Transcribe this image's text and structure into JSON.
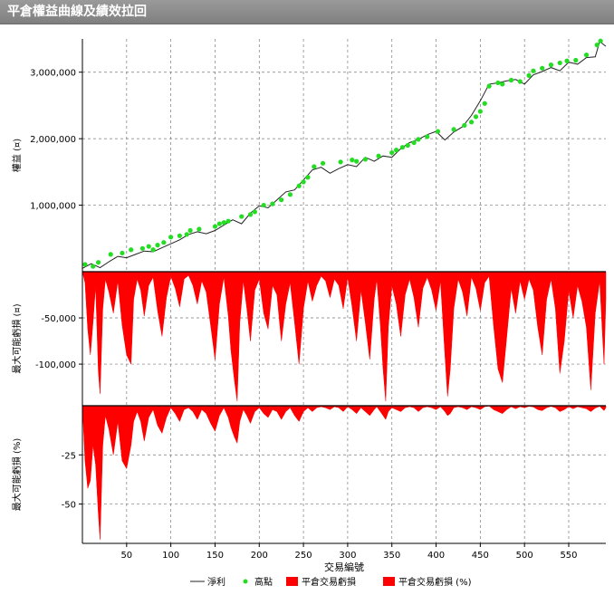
{
  "window_title": "平倉權益曲線及績效拉回",
  "colors": {
    "equity_line": "#222222",
    "high_points": "#22dd22",
    "drawdown_fill": "#ff0000",
    "grid": "#7a7a7a",
    "background": "#ffffff"
  },
  "chart_data": [
    {
      "type": "line",
      "panel": "equity",
      "ylabel": "權益 (¤)",
      "xlim": [
        0,
        592
      ],
      "ylim": [
        0,
        3500000
      ],
      "yticks": [
        1000000,
        2000000,
        3000000
      ],
      "ytick_labels": [
        "1,000,000",
        "2,000,000",
        "3,000,000"
      ],
      "grid": true,
      "series": [
        {
          "name": "淨利",
          "x": [
            0,
            10,
            20,
            30,
            40,
            50,
            60,
            70,
            80,
            90,
            100,
            110,
            120,
            130,
            140,
            150,
            160,
            170,
            180,
            190,
            200,
            210,
            220,
            230,
            240,
            250,
            260,
            270,
            280,
            290,
            300,
            310,
            320,
            330,
            340,
            350,
            360,
            370,
            380,
            390,
            400,
            410,
            420,
            430,
            440,
            450,
            460,
            470,
            480,
            490,
            500,
            510,
            520,
            530,
            540,
            550,
            560,
            570,
            580,
            585,
            592
          ],
          "y": [
            50000,
            120000,
            60000,
            150000,
            230000,
            210000,
            260000,
            310000,
            300000,
            360000,
            420000,
            480000,
            560000,
            600000,
            570000,
            620000,
            700000,
            780000,
            720000,
            880000,
            990000,
            960000,
            1080000,
            1200000,
            1230000,
            1380000,
            1530000,
            1570000,
            1480000,
            1550000,
            1610000,
            1580000,
            1720000,
            1660000,
            1740000,
            1720000,
            1850000,
            1940000,
            1990000,
            2060000,
            2110000,
            1980000,
            2100000,
            2180000,
            2350000,
            2570000,
            2820000,
            2840000,
            2870000,
            2890000,
            2820000,
            2960000,
            3010000,
            3070000,
            3020000,
            3150000,
            3120000,
            3220000,
            3230000,
            3460000,
            3390000
          ]
        },
        {
          "name": "高點",
          "x": [
            3,
            12,
            18,
            32,
            45,
            55,
            68,
            75,
            80,
            85,
            92,
            100,
            110,
            118,
            122,
            132,
            150,
            155,
            160,
            165,
            180,
            190,
            195,
            205,
            215,
            225,
            235,
            245,
            250,
            255,
            262,
            272,
            292,
            305,
            310,
            320,
            335,
            350,
            355,
            362,
            368,
            375,
            380,
            390,
            402,
            420,
            432,
            440,
            445,
            450,
            455,
            460,
            470,
            475,
            485,
            495,
            505,
            510,
            520,
            530,
            540,
            548,
            558,
            570,
            582,
            586
          ],
          "y": [
            110000,
            80000,
            140000,
            260000,
            280000,
            330000,
            350000,
            380000,
            330000,
            400000,
            440000,
            520000,
            540000,
            560000,
            620000,
            640000,
            680000,
            720000,
            740000,
            760000,
            830000,
            860000,
            900000,
            1000000,
            1020000,
            1080000,
            1160000,
            1290000,
            1350000,
            1420000,
            1580000,
            1630000,
            1650000,
            1680000,
            1660000,
            1690000,
            1740000,
            1790000,
            1830000,
            1870000,
            1900000,
            1940000,
            1990000,
            2030000,
            2110000,
            2140000,
            2200000,
            2250000,
            2330000,
            2410000,
            2530000,
            2790000,
            2840000,
            2820000,
            2880000,
            2860000,
            2950000,
            3020000,
            3060000,
            3110000,
            3140000,
            3170000,
            3180000,
            3260000,
            3410000,
            3470000
          ]
        }
      ]
    },
    {
      "type": "area",
      "panel": "drawdown_amount",
      "ylabel": "最大可能虧損 (¤)",
      "xlim": [
        0,
        592
      ],
      "ylim": [
        -145000,
        0
      ],
      "yticks": [
        -50000,
        -100000
      ],
      "ytick_labels": [
        "-50,000",
        "-100,000"
      ],
      "grid": true,
      "series": [
        {
          "name": "平倉交易虧損",
          "x": [
            0,
            3,
            6,
            9,
            12,
            15,
            18,
            20,
            23,
            26,
            30,
            35,
            40,
            45,
            50,
            55,
            58,
            62,
            66,
            70,
            75,
            80,
            85,
            90,
            95,
            100,
            105,
            110,
            115,
            120,
            125,
            130,
            135,
            140,
            145,
            150,
            155,
            160,
            165,
            168,
            172,
            175,
            178,
            182,
            186,
            190,
            195,
            200,
            205,
            210,
            215,
            220,
            225,
            230,
            235,
            240,
            245,
            250,
            255,
            260,
            265,
            270,
            275,
            280,
            285,
            290,
            295,
            300,
            305,
            310,
            315,
            320,
            325,
            330,
            333,
            337,
            340,
            343,
            346,
            350,
            355,
            360,
            365,
            370,
            375,
            380,
            385,
            390,
            395,
            400,
            405,
            410,
            413,
            416,
            420,
            425,
            430,
            435,
            440,
            445,
            450,
            455,
            460,
            465,
            470,
            475,
            480,
            485,
            490,
            495,
            500,
            505,
            510,
            515,
            520,
            525,
            530,
            535,
            540,
            545,
            550,
            555,
            560,
            565,
            570,
            575,
            580,
            585,
            590,
            592
          ],
          "y": [
            0,
            -12000,
            -62000,
            -90000,
            -55000,
            -15000,
            -108000,
            -132000,
            -40000,
            -8000,
            -22000,
            -45000,
            -10000,
            -58000,
            -90000,
            -100000,
            -30000,
            -8000,
            -20000,
            -48000,
            -15000,
            -6000,
            -42000,
            -70000,
            -28000,
            -5000,
            -18000,
            -38000,
            -8000,
            -4000,
            -15000,
            -35000,
            -10000,
            -22000,
            -58000,
            -95000,
            -35000,
            -6000,
            -48000,
            -85000,
            -118000,
            -140000,
            -55000,
            -10000,
            -40000,
            -75000,
            -20000,
            -8000,
            -45000,
            -62000,
            -15000,
            -25000,
            -75000,
            -35000,
            -12000,
            -55000,
            -100000,
            -40000,
            -10000,
            -32000,
            -15000,
            -5000,
            -10000,
            -28000,
            -8000,
            -15000,
            -40000,
            -6000,
            -38000,
            -75000,
            -20000,
            -55000,
            -95000,
            -30000,
            -8000,
            -58000,
            -105000,
            -140000,
            -60000,
            -15000,
            -35000,
            -70000,
            -25000,
            -8000,
            -28000,
            -60000,
            -18000,
            -6000,
            -20000,
            -42000,
            -10000,
            -90000,
            -135000,
            -105000,
            -40000,
            -8000,
            -22000,
            -48000,
            -6000,
            -18000,
            -42000,
            -12000,
            -5000,
            -58000,
            -105000,
            -120000,
            -70000,
            -18000,
            -45000,
            -10000,
            -30000,
            -8000,
            -20000,
            -60000,
            -90000,
            -30000,
            -8000,
            -40000,
            -110000,
            -75000,
            -20000,
            -50000,
            -15000,
            -32000,
            -60000,
            -128000,
            -45000,
            -10000,
            -100000,
            -30000
          ]
        }
      ]
    },
    {
      "type": "area",
      "panel": "drawdown_percent",
      "ylabel": "最大可能虧損 (%)",
      "xlabel": "交易編號",
      "xlim": [
        0,
        592
      ],
      "ylim": [
        -70,
        0
      ],
      "yticks": [
        -25,
        -50
      ],
      "ytick_labels": [
        "-25",
        "-50"
      ],
      "xticks": [
        50,
        100,
        150,
        200,
        250,
        300,
        350,
        400,
        450,
        500,
        550
      ],
      "xtick_labels": [
        "50",
        "100",
        "150",
        "200",
        "250",
        "300",
        "350",
        "400",
        "450",
        "500",
        "550"
      ],
      "grid": true,
      "series": [
        {
          "name": "平倉交易虧損 (%)",
          "x": [
            0,
            3,
            6,
            9,
            12,
            15,
            18,
            20,
            23,
            26,
            30,
            35,
            40,
            45,
            50,
            55,
            58,
            62,
            66,
            70,
            75,
            80,
            85,
            90,
            95,
            100,
            105,
            110,
            115,
            120,
            125,
            130,
            135,
            140,
            145,
            150,
            155,
            160,
            165,
            168,
            172,
            175,
            178,
            182,
            186,
            190,
            195,
            200,
            205,
            210,
            215,
            220,
            225,
            230,
            235,
            240,
            245,
            250,
            255,
            260,
            265,
            270,
            275,
            280,
            285,
            290,
            295,
            300,
            305,
            310,
            315,
            320,
            325,
            330,
            333,
            337,
            340,
            343,
            346,
            350,
            355,
            360,
            365,
            370,
            375,
            380,
            385,
            390,
            395,
            400,
            405,
            410,
            413,
            416,
            420,
            425,
            430,
            435,
            440,
            445,
            450,
            455,
            460,
            465,
            470,
            475,
            480,
            485,
            490,
            495,
            500,
            505,
            510,
            515,
            520,
            525,
            530,
            535,
            540,
            545,
            550,
            555,
            560,
            565,
            570,
            575,
            580,
            585,
            590,
            592
          ],
          "y": [
            0,
            -28,
            -42,
            -38,
            -20,
            -30,
            -55,
            -68,
            -20,
            -5,
            -12,
            -25,
            -8,
            -28,
            -32,
            -20,
            -8,
            -3,
            -8,
            -18,
            -6,
            -2,
            -10,
            -14,
            -6,
            -1,
            -4,
            -8,
            -2,
            -1,
            -3,
            -7,
            -2,
            -4,
            -9,
            -13,
            -5,
            -1,
            -6,
            -11,
            -16,
            -19,
            -8,
            -2,
            -5,
            -9,
            -3,
            -1,
            -4,
            -6,
            -2,
            -3,
            -7,
            -3,
            -1,
            -5,
            -8,
            -3,
            -1,
            -3,
            -1,
            -0.5,
            -1,
            -2,
            -0.5,
            -1,
            -3,
            -0.5,
            -2,
            -4,
            -1,
            -3,
            -5,
            -2,
            -0.5,
            -3,
            -5,
            -7,
            -3,
            -1,
            -2,
            -3,
            -1,
            -0.5,
            -1,
            -3,
            -1,
            -0.5,
            -1,
            -2,
            -0.5,
            -3,
            -5,
            -4,
            -1,
            -0.5,
            -1,
            -2,
            -0.5,
            -1,
            -2,
            -0.5,
            -0.2,
            -2,
            -3,
            -4,
            -2,
            -0.5,
            -1.5,
            -0.5,
            -1,
            -0.3,
            -0.6,
            -2,
            -2.5,
            -1,
            -0.3,
            -1,
            -3,
            -2,
            -0.5,
            -1.5,
            -0.5,
            -1,
            -1.5,
            -3,
            -1.2,
            -0.3,
            -2.5,
            -1
          ]
        }
      ]
    }
  ],
  "legend": {
    "placement": "bottom-center",
    "items": [
      {
        "label": "淨利",
        "marker": "line"
      },
      {
        "label": "高點",
        "marker": "dot"
      },
      {
        "label": "平倉交易虧損",
        "marker": "box"
      },
      {
        "label": "平倉交易虧損 (%)",
        "marker": "box"
      }
    ]
  }
}
